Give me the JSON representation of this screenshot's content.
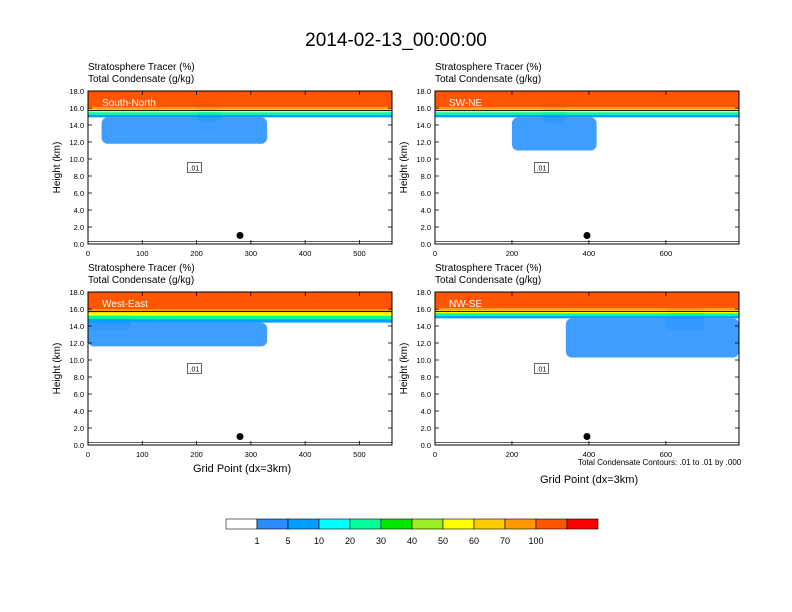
{
  "title": "2014-02-13_00:00:00",
  "footnote": "Total Condensate Contours: .01 to .01 by .000",
  "colorbar": {
    "colors": [
      "#ffffff",
      "#2a8cff",
      "#00a0ff",
      "#00ffff",
      "#00ff99",
      "#00e600",
      "#99ee22",
      "#ffff00",
      "#ffcc00",
      "#ff9900",
      "#ff5500",
      "#ff0000"
    ],
    "labels": [
      "1",
      "5",
      "10",
      "20",
      "30",
      "40",
      "50",
      "60",
      "70",
      "100"
    ]
  },
  "chart_data": [
    {
      "type": "heatmap",
      "label1": "Stratosphere Tracer   (%)",
      "label2": "Total Condensate   (g/kg)",
      "panel_label": "South-North",
      "ylabel": "Height (km)",
      "xlabel": "",
      "xlim": [
        0,
        560
      ],
      "ylim": [
        0,
        18
      ],
      "xticks": [
        0,
        100,
        200,
        300,
        400,
        500
      ],
      "yticks": [
        "0.0",
        "2.0",
        "4.0",
        "6.0",
        "8.0",
        "10.0",
        "12.0",
        "14.0",
        "16.0",
        "18.0"
      ],
      "contour_label": ".01",
      "marker": {
        "x": 280,
        "y": 1.0
      },
      "tracer_bands": [
        {
          "level": "100",
          "from": 16.1,
          "to": 18.0
        },
        {
          "level": "70",
          "from": 15.8,
          "to": 16.1
        },
        {
          "level": "50",
          "from": 15.5,
          "to": 15.8
        },
        {
          "level": "20",
          "from": 15.2,
          "to": 15.5
        },
        {
          "level": "5",
          "from": 14.9,
          "to": 15.2
        }
      ],
      "cloud_patches": [
        {
          "x0": 25,
          "x1": 330,
          "y0": 11.8,
          "y1": 14.9
        },
        {
          "x0": 200,
          "x1": 245,
          "y0": 14.4,
          "y1": 17.0
        }
      ]
    },
    {
      "type": "heatmap",
      "label1": "Stratosphere Tracer   (%)",
      "label2": "Total Condensate   (g/kg)",
      "panel_label": "SW-NE",
      "ylabel": "Height (km)",
      "xlabel": "",
      "xlim": [
        0,
        790
      ],
      "ylim": [
        0,
        18
      ],
      "xticks": [
        0,
        200,
        400,
        600
      ],
      "yticks": [
        "0.0",
        "2.0",
        "4.0",
        "6.0",
        "8.0",
        "10.0",
        "12.0",
        "14.0",
        "16.0",
        "18.0"
      ],
      "contour_label": ".01",
      "marker": {
        "x": 395,
        "y": 1.0
      },
      "tracer_bands": [
        {
          "level": "100",
          "from": 16.1,
          "to": 18.0
        },
        {
          "level": "70",
          "from": 15.8,
          "to": 16.1
        },
        {
          "level": "50",
          "from": 15.5,
          "to": 15.8
        },
        {
          "level": "20",
          "from": 15.2,
          "to": 15.5
        },
        {
          "level": "5",
          "from": 14.9,
          "to": 15.2
        }
      ],
      "cloud_patches": [
        {
          "x0": 200,
          "x1": 420,
          "y0": 11.0,
          "y1": 14.9
        },
        {
          "x0": 280,
          "x1": 340,
          "y0": 14.2,
          "y1": 17.0
        }
      ]
    },
    {
      "type": "heatmap",
      "label1": "Stratosphere Tracer   (%)",
      "label2": "Total Condensate   (g/kg)",
      "panel_label": "West-East",
      "ylabel": "Height (km)",
      "xlabel": "Grid Point (dx=3km)",
      "xlim": [
        0,
        560
      ],
      "ylim": [
        0,
        18
      ],
      "xticks": [
        0,
        100,
        200,
        300,
        400,
        500
      ],
      "yticks": [
        "0.0",
        "2.0",
        "4.0",
        "6.0",
        "8.0",
        "10.0",
        "12.0",
        "14.0",
        "16.0",
        "18.0"
      ],
      "contour_label": ".01",
      "marker": {
        "x": 280,
        "y": 1.0
      },
      "tracer_bands": [
        {
          "level": "100",
          "from": 16.0,
          "to": 18.0
        },
        {
          "level": "70",
          "from": 15.6,
          "to": 16.0
        },
        {
          "level": "50",
          "from": 15.2,
          "to": 15.6
        },
        {
          "level": "20",
          "from": 14.8,
          "to": 15.2
        },
        {
          "level": "5",
          "from": 14.4,
          "to": 14.8
        }
      ],
      "cloud_patches": [
        {
          "x0": 0,
          "x1": 330,
          "y0": 11.6,
          "y1": 14.4
        },
        {
          "x0": 0,
          "x1": 80,
          "y0": 13.5,
          "y1": 17.2
        }
      ]
    },
    {
      "type": "heatmap",
      "label1": "Stratosphere Tracer   (%)",
      "label2": "Total Condensate   (g/kg)",
      "panel_label": "NW-SE",
      "ylabel": "Height (km)",
      "xlabel": "Grid Point (dx=3km)",
      "xlim": [
        0,
        790
      ],
      "ylim": [
        0,
        18
      ],
      "xticks": [
        0,
        200,
        400,
        600
      ],
      "yticks": [
        "0.0",
        "2.0",
        "4.0",
        "6.0",
        "8.0",
        "10.0",
        "12.0",
        "14.0",
        "16.0",
        "18.0"
      ],
      "contour_label": ".01",
      "marker": {
        "x": 395,
        "y": 1.0
      },
      "tracer_bands": [
        {
          "level": "100",
          "from": 16.1,
          "to": 18.0
        },
        {
          "level": "70",
          "from": 15.8,
          "to": 16.1
        },
        {
          "level": "50",
          "from": 15.5,
          "to": 15.8
        },
        {
          "level": "20",
          "from": 15.2,
          "to": 15.5
        },
        {
          "level": "5",
          "from": 14.9,
          "to": 15.2
        }
      ],
      "cloud_patches": [
        {
          "x0": 340,
          "x1": 790,
          "y0": 10.3,
          "y1": 14.9
        },
        {
          "x0": 600,
          "x1": 700,
          "y0": 13.5,
          "y1": 17.0
        }
      ]
    }
  ]
}
